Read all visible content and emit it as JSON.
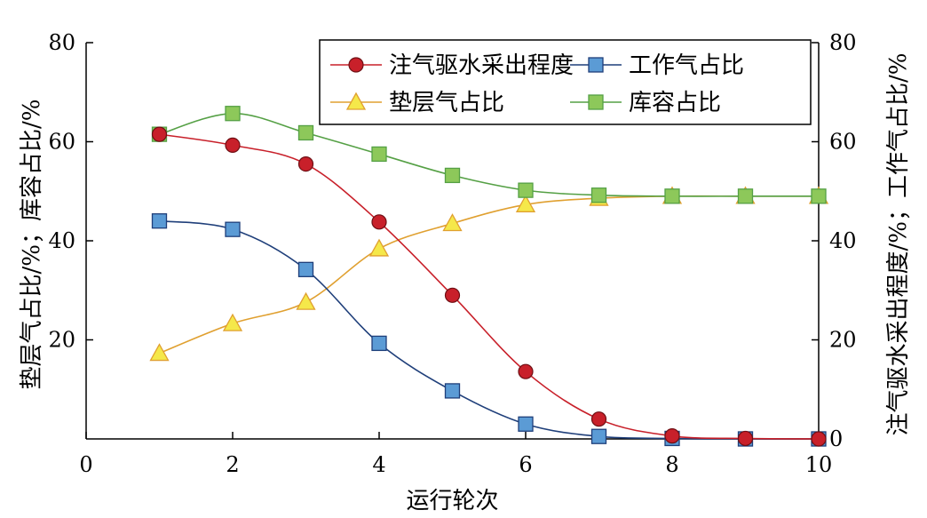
{
  "chart_data": {
    "type": "line",
    "xlabel": "运行轮次",
    "ylabel_left": "垫层气占比/%；库容占比/%",
    "ylabel_right": "注气驱水采出程度/%；工作气占比/%",
    "xlim": [
      0,
      10
    ],
    "ylim": [
      0,
      80
    ],
    "xticks": [
      "0",
      "2",
      "4",
      "6",
      "8",
      "10"
    ],
    "yticks_left": [
      "20",
      "40",
      "60",
      "80"
    ],
    "yticks_right": [
      "0",
      "20",
      "40",
      "60",
      "80"
    ],
    "grid": false,
    "legend_position": "top-right",
    "series": [
      {
        "name": "注气驱水采出程度",
        "marker": "circle",
        "color": "#c8202a",
        "x": [
          1,
          2,
          3,
          4,
          5,
          6,
          7,
          8,
          9,
          10
        ],
        "values": [
          61.5,
          59.3,
          55.5,
          43.8,
          29.0,
          13.6,
          4.0,
          0.6,
          0.1,
          0.0
        ]
      },
      {
        "name": "工作气占比",
        "marker": "square",
        "color": "#1f3f7a",
        "fill": "#5b9bd5",
        "x": [
          1,
          2,
          3,
          4,
          5,
          6,
          7,
          8,
          9,
          10
        ],
        "values": [
          44.0,
          42.3,
          34.2,
          19.3,
          9.7,
          3.0,
          0.5,
          0.1,
          0.0,
          0.0
        ]
      },
      {
        "name": "垫层气占比",
        "marker": "triangle",
        "color": "#e0a030",
        "fill": "#f5e84a",
        "x": [
          1,
          2,
          3,
          4,
          5,
          6,
          7,
          8,
          9,
          10
        ],
        "values": [
          17.3,
          23.3,
          27.6,
          38.4,
          43.5,
          47.3,
          48.6,
          49.0,
          49.0,
          49.0
        ]
      },
      {
        "name": "库容占比",
        "marker": "square",
        "color": "#55a045",
        "fill": "#8dc85a",
        "x": [
          1,
          2,
          3,
          4,
          5,
          6,
          7,
          8,
          9,
          10
        ],
        "values": [
          61.5,
          65.7,
          61.8,
          57.5,
          53.2,
          50.2,
          49.2,
          49.0,
          49.0,
          49.0
        ]
      }
    ]
  }
}
